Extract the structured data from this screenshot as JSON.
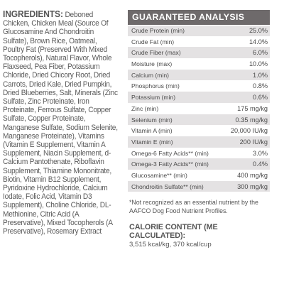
{
  "ingredients": {
    "heading": "INGREDIENTS:",
    "text": "Deboned Chicken, Chicken Meal (Source Of Glucosamine And Chondroitin Sulfate), Brown Rice, Oatmeal, Poultry Fat (Preserved With Mixed Tocopherols), Natural Flavor, Whole Flaxseed, Pea Fiber, Potassium Chloride, Dried Chicory Root, Dried Carrots, Dried Kale, Dried Pumpkin, Dried Blueberries, Salt, Minerals (Zinc Sulfate, Zinc Proteinate, Iron Proteinate, Ferrous Sulfate, Copper Sulfate, Copper Proteinate, Manganese Sulfate, Sodium Selenite, Manganese Proteinate), Vitamins (Vitamin E Supplement, Vitamin A Supplement, Niacin Supplement, d-Calcium Pantothenate, Riboflavin Supplement, Thiamine Mononitrate, Biotin, Vitamin B12 Supplement, Pyridoxine Hydrochloride, Calcium Iodate, Folic Acid, Vitamin D3 Supplement), Choline Chloride, DL-Methionine, Citric Acid (A Preservative), Mixed Tocopherols (A Preservative), Rosemary Extract"
  },
  "analysis": {
    "heading": "GUARANTEED ANALYSIS",
    "rows": [
      {
        "label": "Crude Protein (min)",
        "value": "25.0%"
      },
      {
        "label": "Crude Fat (min)",
        "value": "14.0%"
      },
      {
        "label": "Crude Fiber (max)",
        "value": "6.0%"
      },
      {
        "label": "Moisture (max)",
        "value": "10.0%"
      },
      {
        "label": "Calcium (min)",
        "value": "1.0%"
      },
      {
        "label": "Phosphorus (min)",
        "value": "0.8%"
      },
      {
        "label": "Potassium (min)",
        "value": "0.6%"
      },
      {
        "label": "Zinc (min)",
        "value": "175 mg/kg"
      },
      {
        "label": "Selenium (min)",
        "value": "0.35 mg/kg"
      },
      {
        "label": "Vitamin A (min)",
        "value": "20,000 IU/kg"
      },
      {
        "label": "Vitamin E (min)",
        "value": "200 IU/kg"
      },
      {
        "label": "Omega-6 Fatty Acids** (min)",
        "value": "3.0%"
      },
      {
        "label": "Omega-3 Fatty Acids** (min)",
        "value": "0.4%"
      },
      {
        "label": "Glucosamine** (min)",
        "value": "400 mg/kg"
      },
      {
        "label": "Chondroitin Sulfate** (min)",
        "value": "300 mg/kg"
      }
    ],
    "footnote": "*Not recognized as an essential nutrient by the AAFCO Dog Food Nutrient Profiles."
  },
  "calorie": {
    "heading": "CALORIE CONTENT (ME CALCULATED):",
    "value": "3,515 kcal/kg, 370 kcal/cup"
  },
  "colors": {
    "header_bg": "#6e6a6b",
    "row_shade": "#e4e2e3",
    "text": "#555555"
  }
}
